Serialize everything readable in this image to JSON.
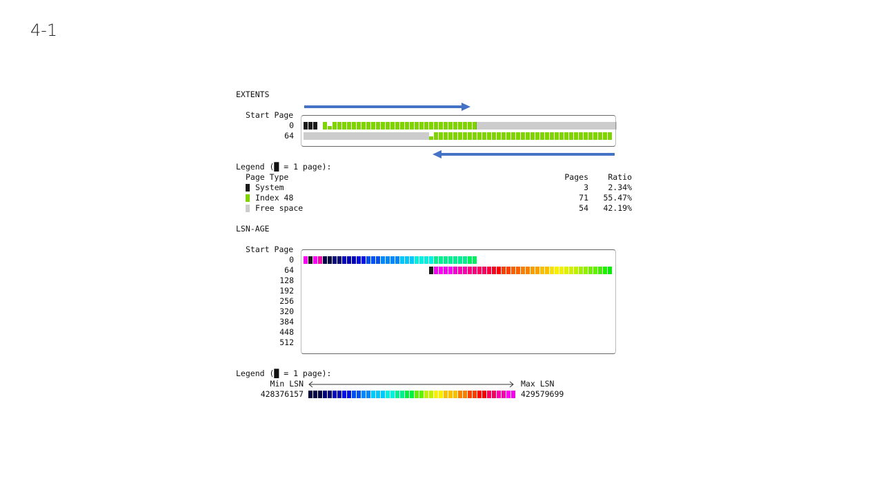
{
  "slide": {
    "title": "4-1"
  },
  "extents": {
    "heading": "EXTENTS",
    "start_page_label": "Start Page",
    "row_labels": [
      "0",
      "64"
    ],
    "legend_title": "Legend (█ = 1 page):",
    "legend_header": {
      "type": "Page Type",
      "pages": "Pages",
      "ratio": "Ratio"
    },
    "legend_rows": [
      {
        "name": "System",
        "pages": "3",
        "ratio": "2.34%",
        "swatch": "system"
      },
      {
        "name": "Index 48",
        "pages": "71",
        "ratio": "55.47%",
        "swatch": "index"
      },
      {
        "name": "Free space",
        "pages": "54",
        "ratio": "42.19%",
        "swatch": "free"
      }
    ],
    "colors": {
      "system": "#1a1a1a",
      "index": "#7fd400",
      "arrow": "#4472c4"
    }
  },
  "lsn_age": {
    "heading": "LSN-AGE",
    "start_page_label": "Start Page",
    "row_labels": [
      "0",
      "64",
      "128",
      "192",
      "256",
      "320",
      "384",
      "448",
      "512"
    ],
    "legend_title": "Legend (█ = 1 page):",
    "min_label": "Min LSN",
    "max_label": "Max LSN",
    "min_value": "428376157",
    "max_value": "429579699",
    "scale_colors": [
      "#000044",
      "#00007a",
      "#0000b4",
      "#0010e0",
      "#0050f0",
      "#0088f8",
      "#00c8f8",
      "#00f0e0",
      "#00f090",
      "#00f040",
      "#60f000",
      "#c0f000",
      "#f8f000",
      "#f8c000",
      "#f88000",
      "#f84000",
      "#f80000",
      "#f80060",
      "#f800b0",
      "#f800f0"
    ]
  }
}
